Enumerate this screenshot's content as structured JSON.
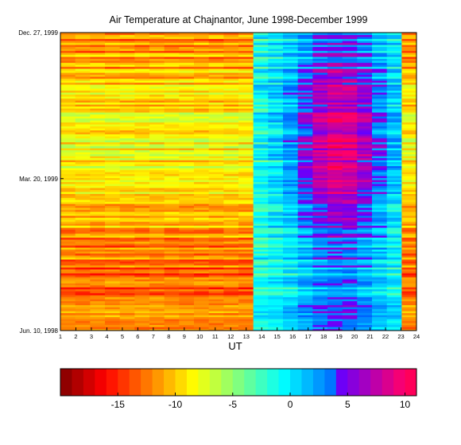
{
  "chart_data": [
    {
      "type": "heatmap",
      "title": "Air Temperature at Chajnantor, June 1998-December 1999",
      "xlabel": "UT",
      "ylabel": "",
      "x_ticks": [
        1,
        2,
        3,
        4,
        5,
        6,
        7,
        8,
        9,
        10,
        11,
        12,
        13,
        14,
        15,
        16,
        17,
        18,
        19,
        20,
        21,
        22,
        23,
        24
      ],
      "xlim": [
        1,
        24
      ],
      "y_tick_labels": [
        "Jun. 10, 1998",
        "Mar. 20, 1999",
        "Dec. 27, 1999"
      ],
      "y_range": [
        "Jun. 10, 1998",
        "Dec. 27, 1999"
      ],
      "value_description": "Hourly air temperature (deg C) per day; cooler (about -10 to -15) during UT 1-13, warmer (about 0 to 10) during UT 14-23, warmest near UT 17-21 in the middle and top of the period",
      "colormap": "jet-reversed",
      "grid": false
    },
    {
      "type": "colorbar",
      "ticks": [
        -15,
        -10,
        -5,
        0,
        5,
        10
      ],
      "tick_labels": [
        "-15",
        "-10",
        "-5",
        "0",
        "5",
        "10"
      ],
      "range": [
        -20,
        11
      ],
      "colors": [
        "#ff0000",
        "#ff8800",
        "#ffff00",
        "#88ff00",
        "#00ff00",
        "#00ffcc",
        "#00ccff",
        "#0066ff",
        "#0000ff",
        "#6600ff",
        "#cc00ff",
        "#ff00cc",
        "#ff0066"
      ]
    }
  ]
}
